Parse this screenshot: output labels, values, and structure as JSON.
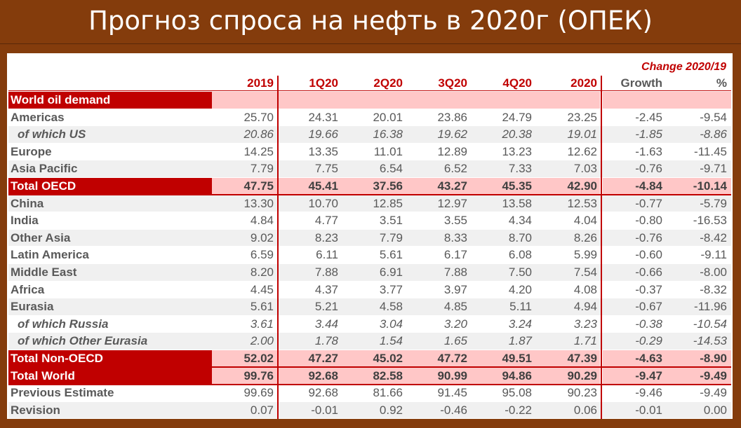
{
  "header": {
    "title": "Прогноз спроса на нефть в 2020г (ОПЕК)"
  },
  "table": {
    "group_header": "Change 2020/19",
    "columns": [
      "2019",
      "1Q20",
      "2Q20",
      "3Q20",
      "4Q20",
      "2020",
      "Growth",
      "%"
    ],
    "rows": [
      {
        "label": "World oil demand",
        "style": "section",
        "cells": []
      },
      {
        "label": "Americas",
        "style": "normal",
        "cells": [
          "25.70",
          "24.31",
          "20.01",
          "23.86",
          "24.79",
          "23.25",
          "-2.45",
          "-9.54"
        ]
      },
      {
        "label": "of which US",
        "style": "italic",
        "cells": [
          "20.86",
          "19.66",
          "16.38",
          "19.62",
          "20.38",
          "19.01",
          "-1.85",
          "-8.86"
        ]
      },
      {
        "label": "Europe",
        "style": "normal",
        "cells": [
          "14.25",
          "13.35",
          "11.01",
          "12.89",
          "13.23",
          "12.62",
          "-1.63",
          "-11.45"
        ]
      },
      {
        "label": "Asia Pacific",
        "style": "normal",
        "cells": [
          "7.79",
          "7.75",
          "6.54",
          "6.52",
          "7.33",
          "7.03",
          "-0.76",
          "-9.71"
        ]
      },
      {
        "label": "Total OECD",
        "style": "total",
        "cells": [
          "47.75",
          "45.41",
          "37.56",
          "43.27",
          "45.35",
          "42.90",
          "-4.84",
          "-10.14"
        ]
      },
      {
        "label": "China",
        "style": "normal",
        "cells": [
          "13.30",
          "10.70",
          "12.85",
          "12.97",
          "13.58",
          "12.53",
          "-0.77",
          "-5.79"
        ]
      },
      {
        "label": "India",
        "style": "normal",
        "cells": [
          "4.84",
          "4.77",
          "3.51",
          "3.55",
          "4.34",
          "4.04",
          "-0.80",
          "-16.53"
        ]
      },
      {
        "label": "Other Asia",
        "style": "normal",
        "cells": [
          "9.02",
          "8.23",
          "7.79",
          "8.33",
          "8.70",
          "8.26",
          "-0.76",
          "-8.42"
        ]
      },
      {
        "label": "Latin America",
        "style": "normal",
        "cells": [
          "6.59",
          "6.11",
          "5.61",
          "6.17",
          "6.08",
          "5.99",
          "-0.60",
          "-9.11"
        ]
      },
      {
        "label": "Middle East",
        "style": "normal",
        "cells": [
          "8.20",
          "7.88",
          "6.91",
          "7.88",
          "7.50",
          "7.54",
          "-0.66",
          "-8.00"
        ]
      },
      {
        "label": "Africa",
        "style": "normal",
        "cells": [
          "4.45",
          "4.37",
          "3.77",
          "3.97",
          "4.20",
          "4.08",
          "-0.37",
          "-8.32"
        ]
      },
      {
        "label": "Eurasia",
        "style": "normal",
        "cells": [
          "5.61",
          "5.21",
          "4.58",
          "4.85",
          "5.11",
          "4.94",
          "-0.67",
          "-11.96"
        ]
      },
      {
        "label": "of which Russia",
        "style": "italic",
        "cells": [
          "3.61",
          "3.44",
          "3.04",
          "3.20",
          "3.24",
          "3.23",
          "-0.38",
          "-10.54"
        ]
      },
      {
        "label": "of which Other Eurasia",
        "style": "italic",
        "cells": [
          "2.00",
          "1.78",
          "1.54",
          "1.65",
          "1.87",
          "1.71",
          "-0.29",
          "-14.53"
        ]
      },
      {
        "label": "Total Non-OECD",
        "style": "total",
        "cells": [
          "52.02",
          "47.27",
          "45.02",
          "47.72",
          "49.51",
          "47.39",
          "-4.63",
          "-8.90"
        ]
      },
      {
        "label": "Total World",
        "style": "total",
        "cells": [
          "99.76",
          "92.68",
          "82.58",
          "90.99",
          "94.86",
          "90.29",
          "-9.47",
          "-9.49"
        ]
      },
      {
        "label": "Previous Estimate",
        "style": "normal",
        "cells": [
          "99.69",
          "92.68",
          "81.66",
          "91.45",
          "95.08",
          "90.23",
          "-9.46",
          "-9.49"
        ]
      },
      {
        "label": "Revision",
        "style": "normal",
        "cells": [
          "0.07",
          "-0.01",
          "0.92",
          "-0.46",
          "-0.22",
          "0.06",
          "-0.01",
          "0.00"
        ]
      }
    ]
  }
}
